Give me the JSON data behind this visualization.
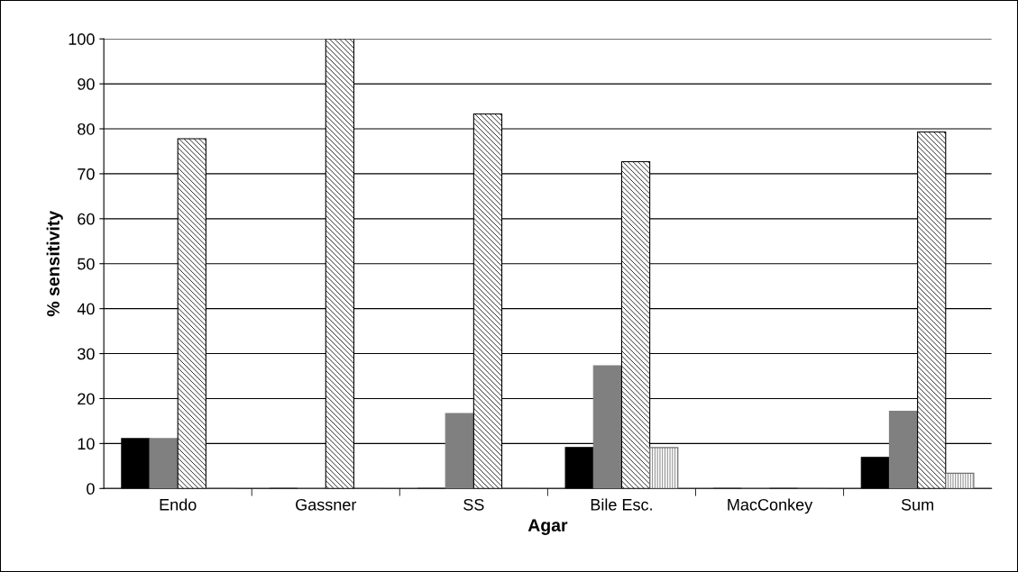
{
  "chart_data": {
    "type": "bar",
    "xlabel": "Agar",
    "ylabel": "% sensitivity",
    "categories": [
      "Endo",
      "Gassner",
      "SS",
      "Bile Esc.",
      "MacConkey",
      "Sum"
    ],
    "series": [
      {
        "color": "#000000",
        "values": [
          11.1,
          0,
          0,
          9.1,
          0,
          6.9
        ]
      },
      {
        "color": "#808080",
        "values": [
          11.1,
          0,
          16.7,
          27.3,
          0,
          17.2
        ]
      },
      {
        "color": "#000000",
        "values": [
          77.8,
          100,
          83.3,
          72.7,
          0,
          79.3
        ]
      },
      {
        "color": "#707070",
        "values": [
          0,
          0,
          0,
          9.1,
          0,
          3.4
        ]
      }
    ],
    "ylim": [
      0,
      100
    ],
    "yticks": [
      0,
      10,
      20,
      30,
      40,
      50,
      60,
      70,
      80,
      90,
      100
    ],
    "grid": "y",
    "legend": false
  }
}
